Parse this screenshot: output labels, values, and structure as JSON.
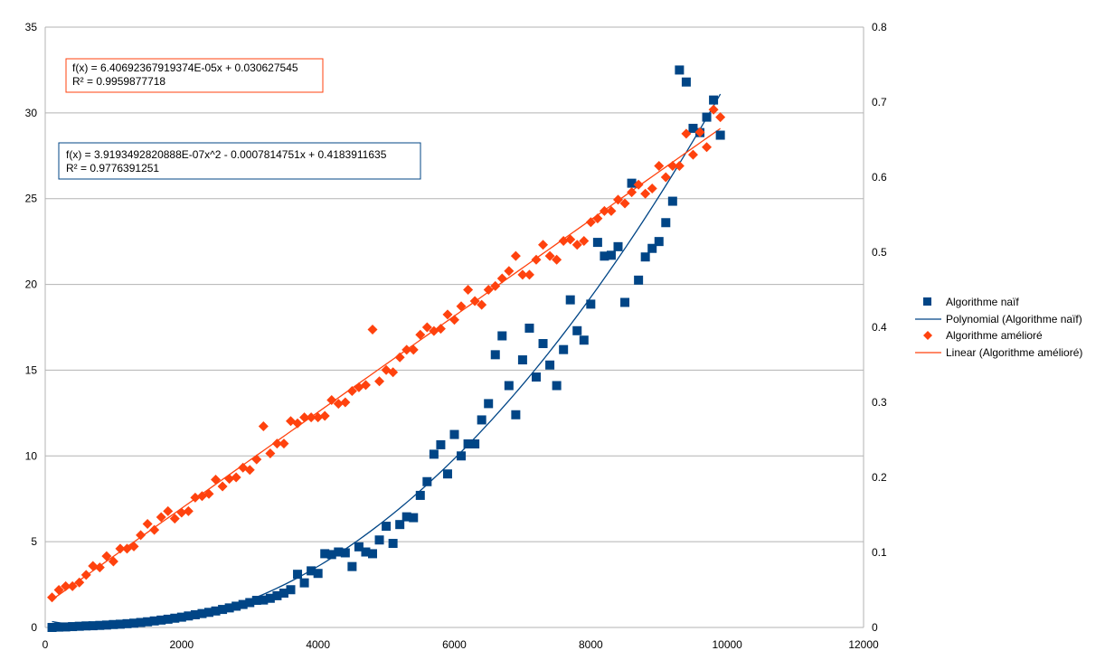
{
  "chart_data": {
    "type": "scatter",
    "title": "",
    "xlabel": "",
    "ylabel": "",
    "y2label": "",
    "xlim": [
      0,
      12000
    ],
    "ylim": [
      0,
      35
    ],
    "y2lim": [
      0,
      0.8
    ],
    "x_ticks": [
      "0",
      "2000",
      "4000",
      "6000",
      "8000",
      "10000",
      "12000"
    ],
    "y_ticks": [
      "0",
      "5",
      "10",
      "15",
      "20",
      "25",
      "30",
      "35"
    ],
    "y2_ticks": [
      "0",
      "0.1",
      "0.2",
      "0.3",
      "0.4",
      "0.5",
      "0.6",
      "0.7",
      "0.8"
    ],
    "grid": "horizontal",
    "legend_position": "right",
    "series": [
      {
        "name": "Algorithme naïf",
        "axis": "left",
        "marker": "square",
        "color": "#004586",
        "x": [
          100,
          200,
          300,
          400,
          500,
          600,
          700,
          800,
          900,
          1000,
          1100,
          1200,
          1300,
          1400,
          1500,
          1600,
          1700,
          1800,
          1900,
          2000,
          2100,
          2200,
          2300,
          2400,
          2500,
          2600,
          2700,
          2800,
          2900,
          3000,
          3100,
          3200,
          3300,
          3400,
          3500,
          3600,
          3700,
          3800,
          3900,
          4000,
          4100,
          4200,
          4300,
          4400,
          4500,
          4600,
          4700,
          4800,
          4900,
          5000,
          5100,
          5200,
          5300,
          5400,
          5500,
          5600,
          5700,
          5800,
          5900,
          6000,
          6100,
          6200,
          6300,
          6400,
          6500,
          6600,
          6700,
          6800,
          6900,
          7000,
          7100,
          7200,
          7300,
          7400,
          7500,
          7600,
          7700,
          7800,
          7900,
          8000,
          8100,
          8200,
          8300,
          8400,
          8500,
          8600,
          8700,
          8800,
          8900,
          9000,
          9100,
          9200,
          9300,
          9400,
          9500,
          9600,
          9700,
          9800,
          9900
        ],
        "y": [
          0.0,
          0.02,
          0.03,
          0.05,
          0.07,
          0.09,
          0.1,
          0.12,
          0.14,
          0.17,
          0.19,
          0.22,
          0.25,
          0.29,
          0.33,
          0.38,
          0.43,
          0.48,
          0.54,
          0.6,
          0.67,
          0.74,
          0.81,
          0.88,
          0.96,
          1.05,
          1.14,
          1.24,
          1.34,
          1.45,
          1.58,
          1.6,
          1.7,
          1.85,
          2.0,
          2.2,
          3.1,
          2.6,
          3.3,
          3.15,
          4.3,
          4.25,
          4.4,
          4.35,
          3.55,
          4.7,
          4.4,
          4.3,
          5.1,
          5.9,
          4.9,
          6.0,
          6.45,
          6.4,
          7.7,
          8.5,
          10.1,
          10.65,
          8.95,
          11.25,
          10.0,
          10.7,
          10.7,
          12.1,
          13.05,
          15.9,
          17.0,
          14.1,
          12.4,
          15.6,
          17.45,
          14.6,
          16.55,
          15.3,
          14.1,
          16.2,
          19.1,
          17.3,
          16.75,
          18.85,
          22.45,
          21.65,
          21.7,
          22.2,
          18.95,
          25.9,
          20.25,
          21.6,
          22.1,
          22.5,
          23.6,
          24.85,
          32.5,
          31.8,
          29.1,
          28.85,
          29.75,
          30.75,
          28.7
        ]
      },
      {
        "name": "Polynomial (Algorithme naïf)",
        "axis": "left",
        "type": "trendline",
        "color": "#004586",
        "equation": "f(x) = 3.9193492820888E-07x^2 - 0.0007814751x + 0.4183911635",
        "r2": "R² = 0.9776391251",
        "coefficients": [
          3.9193492820888e-07,
          -0.0007814751,
          0.4183911635
        ],
        "x_range": [
          100,
          9900
        ]
      },
      {
        "name": "Algorithme amélioré",
        "axis": "right",
        "marker": "diamond",
        "color": "#ff420e",
        "x": [
          100,
          200,
          300,
          400,
          500,
          600,
          700,
          800,
          900,
          1000,
          1100,
          1200,
          1300,
          1400,
          1500,
          1600,
          1700,
          1800,
          1900,
          2000,
          2100,
          2200,
          2300,
          2400,
          2500,
          2600,
          2700,
          2800,
          2900,
          3000,
          3100,
          3200,
          3300,
          3400,
          3500,
          3600,
          3700,
          3800,
          3900,
          4000,
          4100,
          4200,
          4300,
          4400,
          4500,
          4600,
          4700,
          4800,
          4900,
          5000,
          5100,
          5200,
          5300,
          5400,
          5500,
          5600,
          5700,
          5800,
          5900,
          6000,
          6100,
          6200,
          6300,
          6400,
          6500,
          6600,
          6700,
          6800,
          6900,
          7000,
          7100,
          7200,
          7300,
          7400,
          7500,
          7600,
          7700,
          7800,
          7900,
          8000,
          8100,
          8200,
          8300,
          8400,
          8500,
          8600,
          8700,
          8800,
          8900,
          9000,
          9100,
          9200,
          9300,
          9400,
          9500,
          9600,
          9700,
          9800,
          9900
        ],
        "y": [
          0.04,
          0.05,
          0.055,
          0.055,
          0.06,
          0.07,
          0.082,
          0.08,
          0.095,
          0.088,
          0.105,
          0.105,
          0.108,
          0.123,
          0.138,
          0.13,
          0.147,
          0.155,
          0.145,
          0.153,
          0.155,
          0.173,
          0.175,
          0.178,
          0.197,
          0.188,
          0.198,
          0.2,
          0.213,
          0.21,
          0.224,
          0.268,
          0.232,
          0.245,
          0.245,
          0.275,
          0.272,
          0.28,
          0.28,
          0.28,
          0.282,
          0.303,
          0.298,
          0.3,
          0.315,
          0.32,
          0.323,
          0.397,
          0.328,
          0.343,
          0.34,
          0.36,
          0.37,
          0.37,
          0.39,
          0.4,
          0.395,
          0.398,
          0.417,
          0.41,
          0.428,
          0.45,
          0.435,
          0.43,
          0.45,
          0.455,
          0.465,
          0.475,
          0.495,
          0.47,
          0.47,
          0.49,
          0.51,
          0.495,
          0.49,
          0.515,
          0.517,
          0.51,
          0.515,
          0.54,
          0.545,
          0.555,
          0.555,
          0.57,
          0.565,
          0.58,
          0.59,
          0.578,
          0.585,
          0.615,
          0.6,
          0.615,
          0.615,
          0.658,
          0.63,
          0.66,
          0.64,
          0.69,
          0.68
        ]
      },
      {
        "name": "Linear (Algorithme amélioré)",
        "axis": "right",
        "type": "trendline",
        "color": "#ff420e",
        "equation": "f(x) = 6.40692367919374E-05x + 0.030627545",
        "r2": "R² = 0.9959877718",
        "coefficients": [
          6.40692367919374e-05,
          0.030627545
        ],
        "x_range": [
          100,
          9900
        ]
      }
    ],
    "colors": {
      "grid": "#b3b3b3",
      "axis": "#b3b3b3",
      "poly_box_border": "#004586",
      "linear_box_border": "#ff420e"
    }
  }
}
